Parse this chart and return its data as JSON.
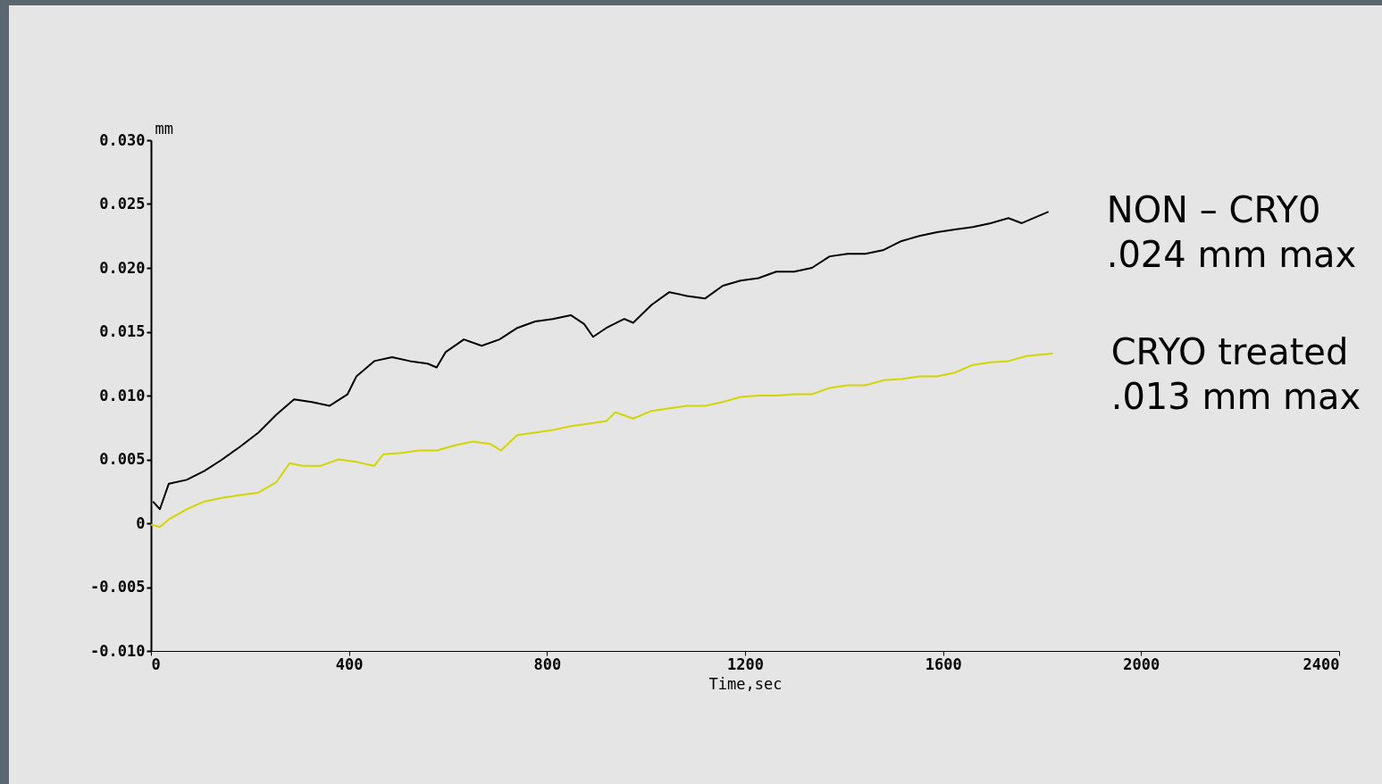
{
  "chart_data": {
    "type": "line",
    "xlabel": "Time,sec",
    "ylabel": "mm",
    "xlim": [
      0,
      2400
    ],
    "xticks": [
      0,
      400,
      800,
      1200,
      1600,
      2000,
      2400
    ],
    "ylim": [
      -0.01,
      0.03
    ],
    "yticks": [
      {
        "value": -0.01,
        "label": "-0.010"
      },
      {
        "value": -0.005,
        "label": "-0.005"
      },
      0,
      {
        "value": 0.005,
        "label": "0.005"
      },
      {
        "value": 0.01,
        "label": "0.010"
      },
      {
        "value": 0.015,
        "label": "0.015"
      },
      {
        "value": 0.02,
        "label": "0.020"
      },
      {
        "value": 0.025,
        "label": "0.025"
      },
      {
        "value": 0.03,
        "label": "0.030"
      }
    ],
    "grid": false,
    "legend": false,
    "marker": "none",
    "line_style": "solid",
    "series": [
      {
        "name": "NON – CRY0\n.024 mm max",
        "color": "#000000",
        "x": [
          4,
          18,
          36,
          72,
          108,
          144,
          180,
          217,
          253,
          289,
          325,
          361,
          397,
          415,
          451,
          487,
          523,
          559,
          577,
          595,
          632,
          668,
          704,
          740,
          776,
          812,
          848,
          875,
          893,
          920,
          956,
          974,
          1011,
          1047,
          1083,
          1119,
          1155,
          1191,
          1227,
          1263,
          1299,
          1335,
          1371,
          1407,
          1443,
          1480,
          1516,
          1552,
          1588,
          1624,
          1660,
          1696,
          1732,
          1759,
          1813
        ],
        "values": [
          0.0017,
          0.0011,
          0.0031,
          0.0034,
          0.0041,
          0.005,
          0.006,
          0.0071,
          0.0085,
          0.0097,
          0.0095,
          0.0092,
          0.0101,
          0.0115,
          0.0127,
          0.013,
          0.0127,
          0.0125,
          0.0122,
          0.0134,
          0.0144,
          0.0139,
          0.0144,
          0.0153,
          0.0158,
          0.016,
          0.0163,
          0.0156,
          0.0146,
          0.0153,
          0.016,
          0.0157,
          0.0171,
          0.0181,
          0.0178,
          0.0176,
          0.0186,
          0.019,
          0.0192,
          0.0197,
          0.0197,
          0.02,
          0.0209,
          0.0211,
          0.0211,
          0.0214,
          0.0221,
          0.0225,
          0.0228,
          0.023,
          0.0232,
          0.0235,
          0.0239,
          0.0235,
          0.0244
        ]
      },
      {
        "name": "CRYO treated\n.013 mm max",
        "color": "#d4d400",
        "x": [
          0,
          18,
          36,
          72,
          108,
          144,
          180,
          217,
          253,
          280,
          307,
          343,
          379,
          415,
          451,
          469,
          505,
          541,
          577,
          614,
          650,
          686,
          707,
          740,
          776,
          812,
          848,
          884,
          920,
          938,
          974,
          1011,
          1047,
          1083,
          1119,
          1155,
          1191,
          1227,
          1263,
          1299,
          1335,
          1371,
          1407,
          1443,
          1480,
          1516,
          1552,
          1588,
          1624,
          1660,
          1696,
          1732,
          1768,
          1822
        ],
        "values": [
          -0.0001,
          -0.0003,
          0.0003,
          0.0011,
          0.0017,
          0.002,
          0.0022,
          0.0024,
          0.0032,
          0.0047,
          0.0045,
          0.0045,
          0.005,
          0.0048,
          0.0045,
          0.0054,
          0.0055,
          0.0057,
          0.0057,
          0.0061,
          0.0064,
          0.0062,
          0.0057,
          0.0069,
          0.0071,
          0.0073,
          0.0076,
          0.0078,
          0.008,
          0.0087,
          0.0082,
          0.0088,
          0.009,
          0.0092,
          0.0092,
          0.0095,
          0.0099,
          0.01,
          0.01,
          0.0101,
          0.0101,
          0.0106,
          0.0108,
          0.0108,
          0.0112,
          0.0113,
          0.0115,
          0.0115,
          0.0118,
          0.0124,
          0.0126,
          0.0127,
          0.0131,
          0.0133
        ]
      }
    ]
  }
}
